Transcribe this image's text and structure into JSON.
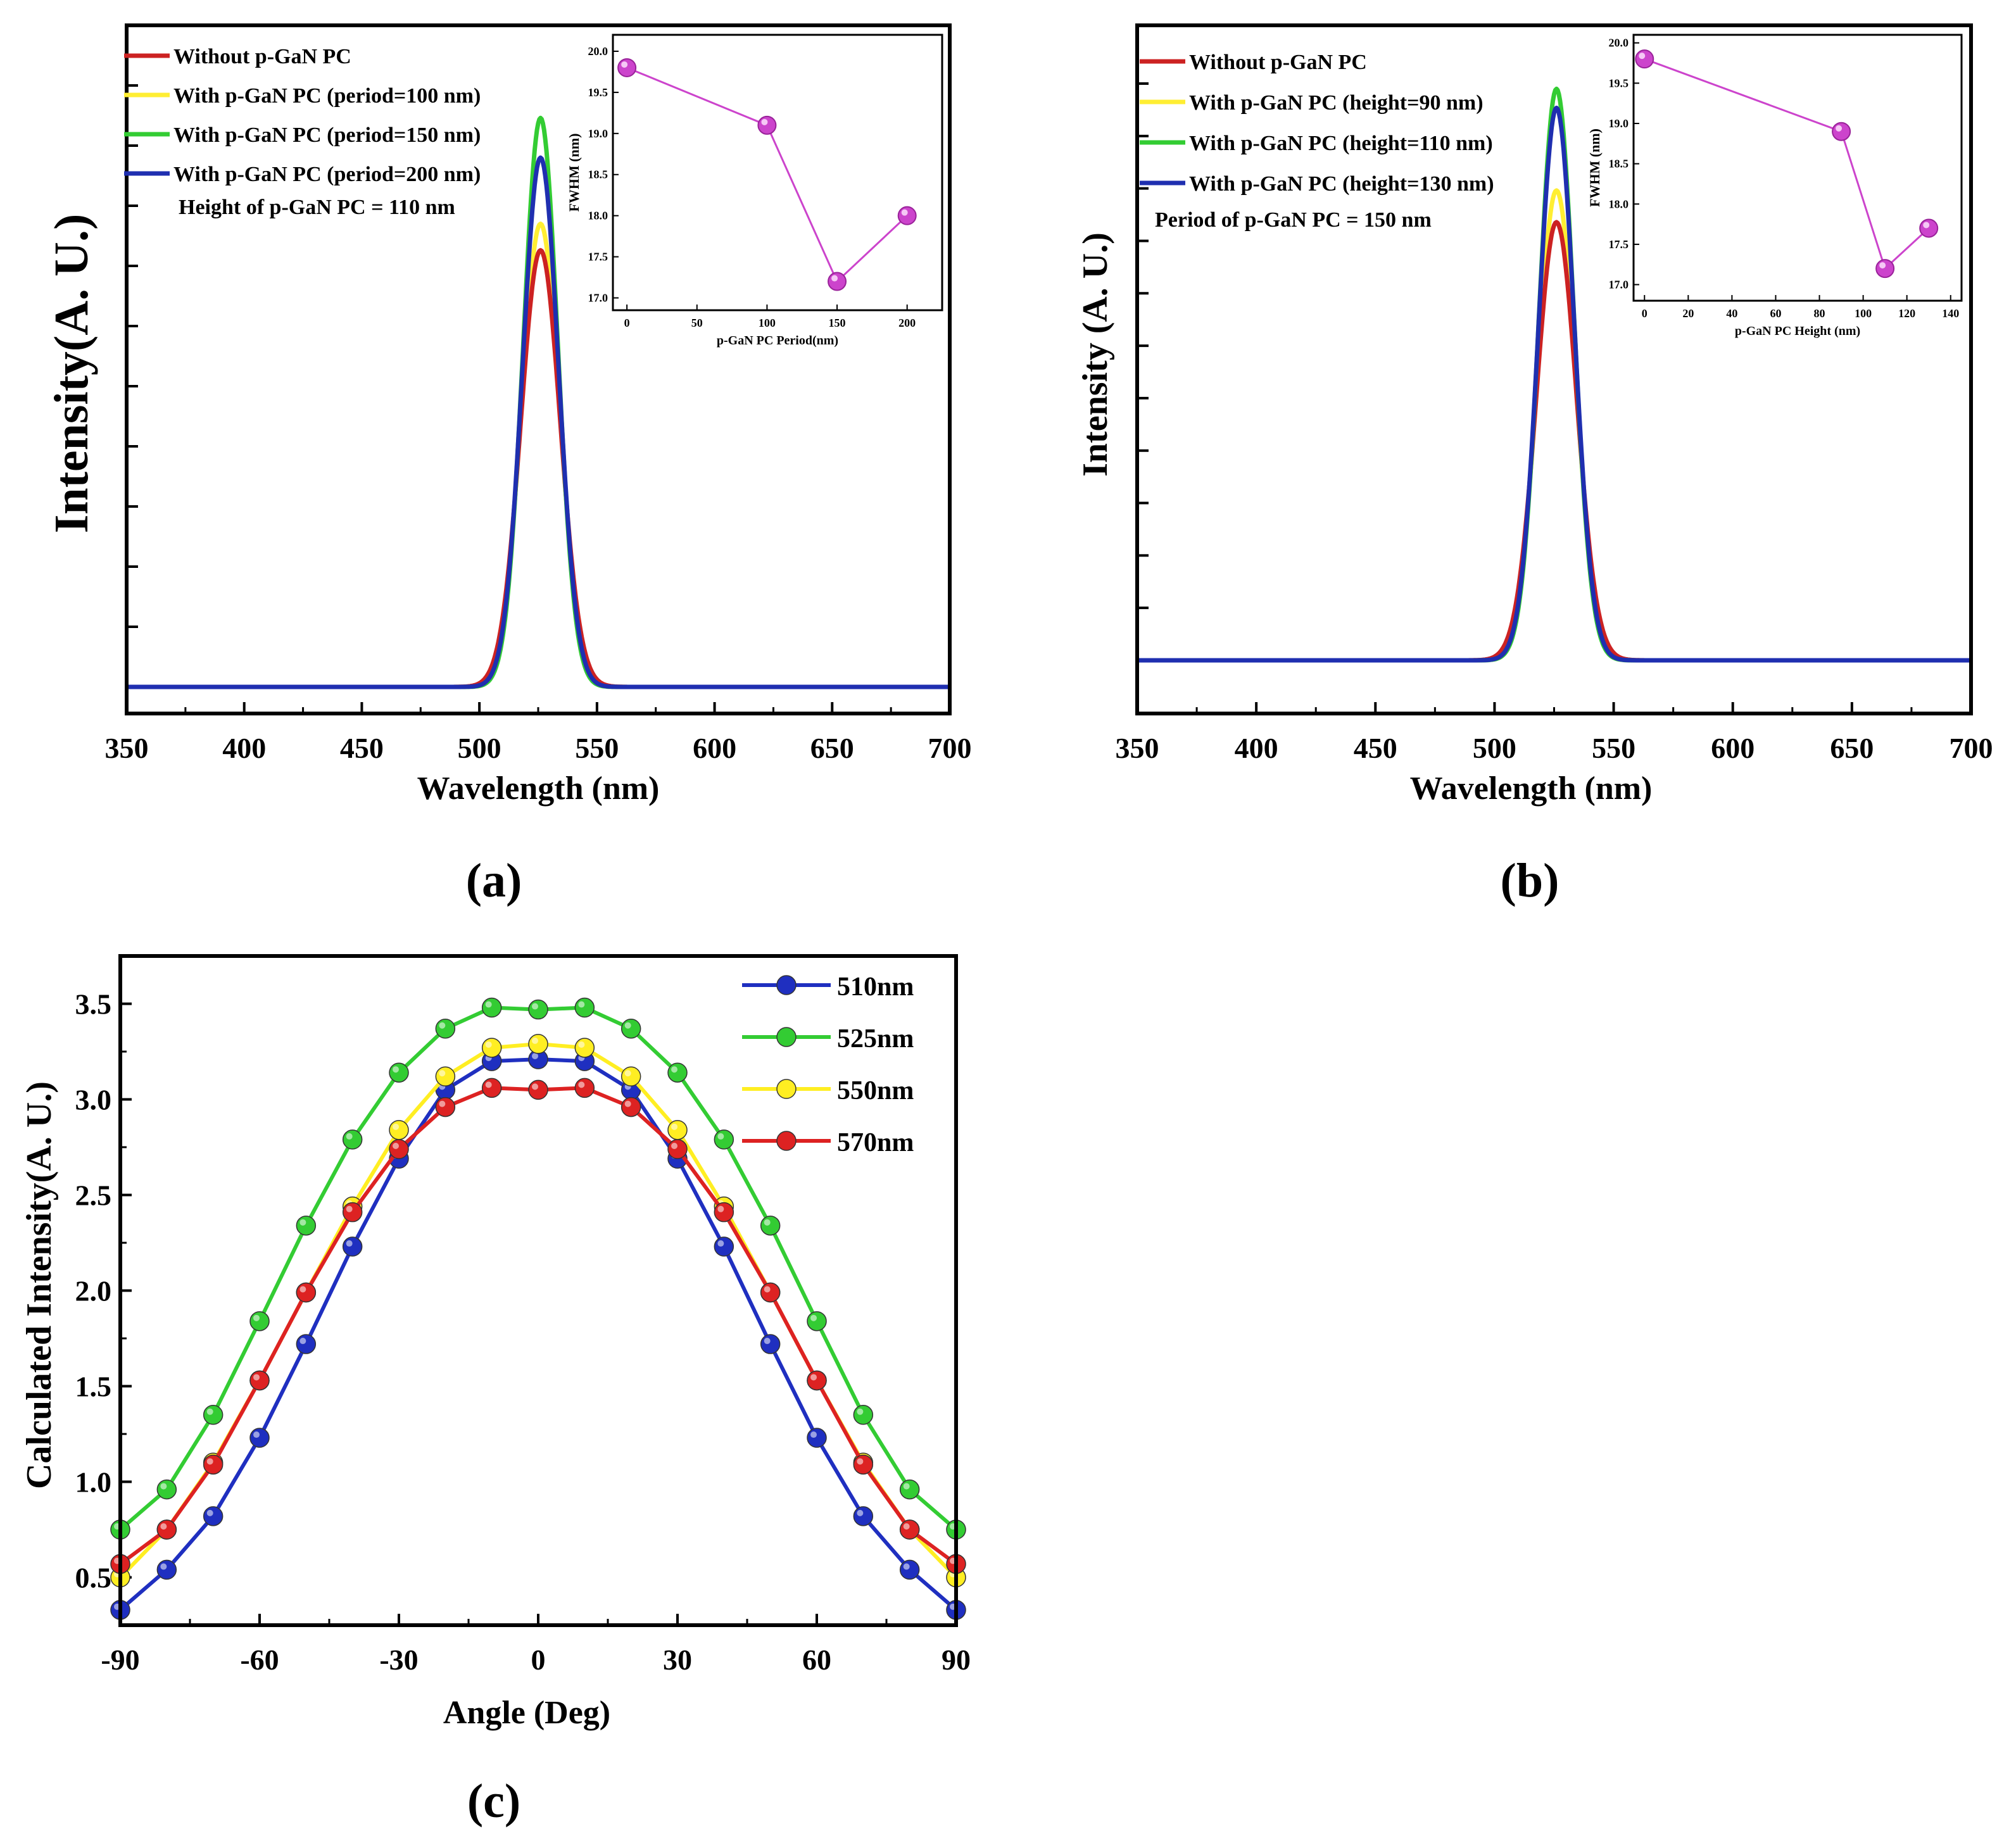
{
  "panel_labels": [
    "(a)",
    "(b)",
    "(c)"
  ],
  "chart_data": [
    {
      "id": "a",
      "type": "line",
      "xlabel": "Wavelength (nm)",
      "ylabel": "Intensity(A. U.)",
      "xlim": [
        350,
        700
      ],
      "xticks": [
        350,
        400,
        450,
        500,
        550,
        600,
        650,
        700
      ],
      "peak_center_nm": 526,
      "series": [
        {
          "name": "Without p-GaN PC",
          "color": "#cc2222",
          "peak_height": 0.66,
          "fwhm_nm": 19.8
        },
        {
          "name": "With p-GaN PC (period=100 nm)",
          "color": "#ffee33",
          "peak_height": 0.7,
          "fwhm_nm": 19.1
        },
        {
          "name": "With p-GaN PC (period=150 nm)",
          "color": "#33cc33",
          "peak_height": 0.86,
          "fwhm_nm": 17.2
        },
        {
          "name": "With p-GaN PC (period=200 nm)",
          "color": "#1f2fb0",
          "peak_height": 0.8,
          "fwhm_nm": 18.0
        }
      ],
      "annotation": "Height of p-GaN PC = 110 nm",
      "inset": {
        "type": "line",
        "xlabel": "p-GaN PC Period(nm)",
        "ylabel": "FWHM (nm)",
        "xlim": [
          -10,
          225
        ],
        "ylim": [
          16.85,
          20.2
        ],
        "xticks": [
          0,
          50,
          100,
          150,
          200
        ],
        "yticks": [
          17.0,
          17.5,
          18.0,
          18.5,
          19.0,
          19.5,
          20.0
        ],
        "ytick_labels": [
          "17.0",
          "17.5",
          "18.0",
          "18.5",
          "19.0",
          "19.5",
          "20.0"
        ],
        "x": [
          0,
          100,
          150,
          200
        ],
        "y": [
          19.8,
          19.1,
          17.2,
          18.0
        ],
        "color": "#cc44cc"
      }
    },
    {
      "id": "b",
      "type": "line",
      "xlabel": "Wavelength (nm)",
      "ylabel": "Intensity (A. U.)",
      "xlim": [
        350,
        700
      ],
      "xticks": [
        350,
        400,
        450,
        500,
        550,
        600,
        650,
        700
      ],
      "peak_center_nm": 526,
      "series": [
        {
          "name": "Without p-GaN PC",
          "color": "#cc2222",
          "peak_height": 0.69,
          "fwhm_nm": 19.8
        },
        {
          "name": "With p-GaN PC (height=90 nm)",
          "color": "#ffee33",
          "peak_height": 0.74,
          "fwhm_nm": 18.9
        },
        {
          "name": "With p-GaN PC (height=110 nm)",
          "color": "#33cc33",
          "peak_height": 0.9,
          "fwhm_nm": 17.2
        },
        {
          "name": "With p-GaN PC (height=130 nm)",
          "color": "#1f2fb0",
          "peak_height": 0.87,
          "fwhm_nm": 17.7
        }
      ],
      "annotation": "Period of p-GaN PC = 150 nm",
      "inset": {
        "type": "line",
        "xlabel": "p-GaN PC Height (nm)",
        "ylabel": "FWHM (nm)",
        "xlim": [
          -5,
          145
        ],
        "ylim": [
          16.8,
          20.1
        ],
        "xticks": [
          0,
          20,
          40,
          60,
          80,
          100,
          120,
          140
        ],
        "yticks": [
          17.0,
          17.5,
          18.0,
          18.5,
          19.0,
          19.5,
          20.0
        ],
        "ytick_labels": [
          "17.0",
          "17.5",
          "18.0",
          "18.5",
          "19.0",
          "19.5",
          "20.0"
        ],
        "x": [
          0,
          90,
          110,
          130
        ],
        "y": [
          19.8,
          18.9,
          17.2,
          17.7
        ],
        "color": "#cc44cc"
      }
    },
    {
      "id": "c",
      "type": "line",
      "xlabel": "Angle (Deg)",
      "ylabel": "Calculated Intensity(A. U.)",
      "xlim": [
        -90,
        90
      ],
      "ylim": [
        0.25,
        3.75
      ],
      "xticks": [
        -90,
        -60,
        -30,
        0,
        30,
        60,
        90
      ],
      "yticks": [
        0.5,
        1.0,
        1.5,
        2.0,
        2.5,
        3.0,
        3.5
      ],
      "ytick_labels": [
        "0.5",
        "1.0",
        "1.5",
        "2.0",
        "2.5",
        "3.0",
        "3.5"
      ],
      "x": [
        -90,
        -80,
        -70,
        -60,
        -50,
        -40,
        -30,
        -20,
        -10,
        0,
        10,
        20,
        30,
        40,
        50,
        60,
        70,
        80,
        90
      ],
      "series": [
        {
          "name": "510nm",
          "color": "#1f2fc0",
          "values": [
            0.33,
            0.54,
            0.82,
            1.23,
            1.72,
            2.23,
            2.69,
            3.05,
            3.2,
            3.21,
            3.2,
            3.05,
            2.69,
            2.23,
            1.72,
            1.23,
            0.82,
            0.54,
            0.33
          ]
        },
        {
          "name": "525nm",
          "color": "#33cc33",
          "values": [
            0.75,
            0.96,
            1.35,
            1.84,
            2.34,
            2.79,
            3.14,
            3.37,
            3.48,
            3.47,
            3.48,
            3.37,
            3.14,
            2.79,
            2.34,
            1.84,
            1.35,
            0.96,
            0.75
          ]
        },
        {
          "name": "550nm",
          "color": "#ffee22",
          "values": [
            0.5,
            0.75,
            1.1,
            1.53,
            1.99,
            2.44,
            2.84,
            3.12,
            3.27,
            3.29,
            3.27,
            3.12,
            2.84,
            2.44,
            1.99,
            1.53,
            1.1,
            0.75,
            0.5
          ]
        },
        {
          "name": "570nm",
          "color": "#dd2222",
          "values": [
            0.57,
            0.75,
            1.09,
            1.53,
            1.99,
            2.41,
            2.74,
            2.96,
            3.06,
            3.05,
            3.06,
            2.96,
            2.74,
            2.41,
            1.99,
            1.53,
            1.09,
            0.75,
            0.57
          ]
        }
      ]
    }
  ]
}
